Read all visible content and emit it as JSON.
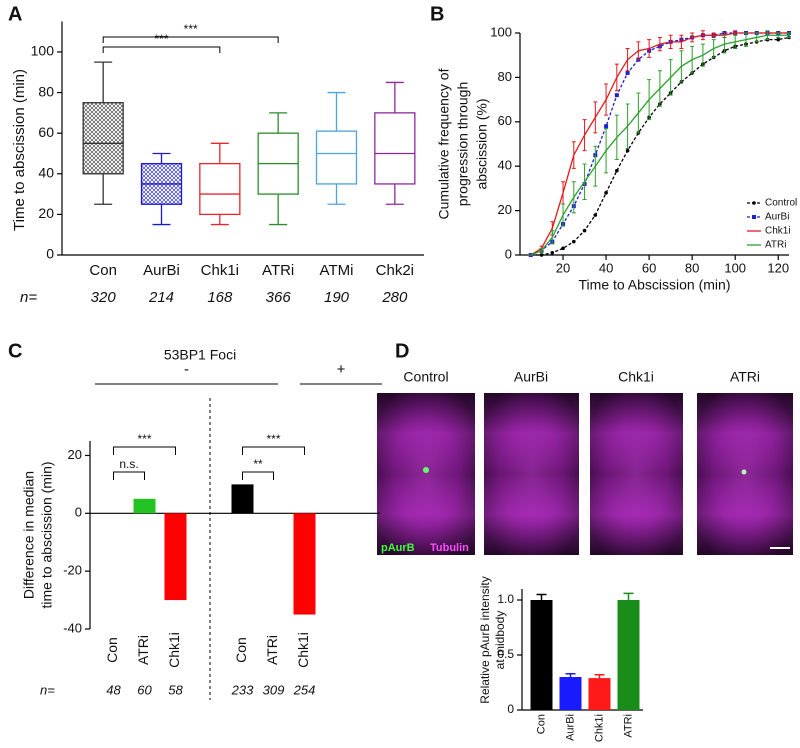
{
  "chart_data": [
    {
      "panel": "A",
      "type": "box",
      "categories": [
        "Con",
        "AurBi",
        "Chk1i",
        "ATRi",
        "ATMi",
        "Chk2i"
      ],
      "colors": [
        "#333333",
        "#1a1acc",
        "#e8262d",
        "#2c8c2c",
        "#4ba3e0",
        "#8c2a9c"
      ],
      "hatched": [
        true,
        true,
        false,
        false,
        false,
        false
      ],
      "min": [
        25,
        15,
        15,
        15,
        25,
        25
      ],
      "q1": [
        40,
        25,
        20,
        30,
        35,
        35
      ],
      "median": [
        55,
        35,
        30,
        45,
        50,
        50
      ],
      "q3": [
        75,
        45,
        45,
        60,
        61,
        70
      ],
      "max": [
        95,
        50,
        55,
        70,
        80,
        85
      ],
      "ylabel": "Time to abscission (min)",
      "ylim": [
        0,
        115
      ],
      "yticks": [
        0,
        20,
        40,
        60,
        80,
        100
      ],
      "n_label": "n=",
      "n": [
        320,
        214,
        168,
        366,
        190,
        280
      ],
      "annotations": [
        "***",
        "***"
      ]
    },
    {
      "panel": "B",
      "type": "line",
      "x": [
        5,
        10,
        15,
        20,
        25,
        30,
        35,
        40,
        45,
        50,
        55,
        60,
        65,
        70,
        75,
        80,
        85,
        90,
        95,
        100,
        105,
        110,
        115,
        120,
        125
      ],
      "xlim": [
        0,
        125
      ],
      "xticks": [
        20,
        40,
        60,
        80,
        100,
        120
      ],
      "ylim": [
        0,
        100
      ],
      "yticks": [
        0,
        20,
        40,
        60,
        80,
        100
      ],
      "xlabel": "Time to Abscission (min)",
      "ylabel": [
        "Cumulative frequency of",
        "progression through",
        "abscission (%)"
      ],
      "legend": "lower right",
      "series": [
        {
          "name": "Control",
          "color": "#000000",
          "style": "dashed",
          "marker": "circle",
          "values": [
            0,
            0,
            1,
            3,
            6,
            11,
            18,
            28,
            38,
            47,
            55,
            62,
            68,
            73,
            78,
            82,
            86,
            89,
            92,
            94,
            95,
            96,
            97,
            97,
            98
          ]
        },
        {
          "name": "AurBi",
          "color": "#1f1fd6",
          "style": "dashed",
          "marker": "square",
          "values": [
            0,
            2,
            6,
            14,
            22,
            32,
            45,
            58,
            72,
            82,
            88,
            92,
            94,
            96,
            97,
            98,
            99,
            99,
            100,
            100,
            100,
            100,
            100,
            100,
            100
          ]
        },
        {
          "name": "Chk1i",
          "color": "#e31a1c",
          "style": "solid",
          "values": [
            0,
            3,
            12,
            28,
            45,
            54,
            62,
            70,
            80,
            88,
            92,
            93,
            95,
            96,
            96,
            98,
            99,
            99,
            99,
            100,
            100,
            100,
            100,
            100,
            100
          ],
          "errors": [
            0,
            1,
            3,
            5,
            6,
            7,
            7,
            7,
            6,
            5,
            4,
            4,
            3,
            3,
            3,
            2,
            2,
            1,
            1,
            1,
            0,
            0,
            0,
            0,
            0
          ]
        },
        {
          "name": "ATRi",
          "color": "#2ca02c",
          "style": "solid",
          "values": [
            0,
            2,
            8,
            18,
            26,
            33,
            40,
            47,
            53,
            58,
            64,
            70,
            75,
            80,
            85,
            88,
            90,
            93,
            95,
            96,
            97,
            98,
            99,
            99,
            99
          ],
          "errors": [
            0,
            1,
            3,
            5,
            7,
            8,
            9,
            10,
            10,
            10,
            9,
            9,
            8,
            8,
            7,
            6,
            5,
            4,
            4,
            3,
            3,
            2,
            2,
            1,
            1
          ]
        }
      ]
    },
    {
      "panel": "C",
      "type": "bar",
      "title": "53BP1 Foci",
      "groups": [
        "-",
        "+"
      ],
      "categories": [
        "Con",
        "ATRi",
        "Chk1i",
        "Con",
        "ATRi",
        "Chk1i"
      ],
      "values": [
        0,
        5,
        -30,
        10,
        0,
        -35
      ],
      "colors": [
        "#000000",
        "#22c322",
        "#ff0000",
        "#000000",
        "#22c322",
        "#ff0000"
      ],
      "ylim": [
        -40,
        25
      ],
      "yticks": [
        -40,
        -20,
        0,
        20
      ],
      "ylabel": [
        "Difference in median",
        "time to abscission (min)"
      ],
      "n_label": "n=",
      "n": [
        48,
        60,
        58,
        233,
        309,
        254
      ],
      "annotations": [
        "n.s.",
        "***",
        "**",
        "***"
      ]
    },
    {
      "type": "bar",
      "categories": [
        "Con",
        "AurBi",
        "Chk1i",
        "ATRi"
      ],
      "values": [
        1.0,
        0.3,
        0.29,
        1.0
      ],
      "errors": [
        0.05,
        0.03,
        0.03,
        0.06
      ],
      "colors": [
        "#000000",
        "#1a1aff",
        "#ff1a1a",
        "#1a8c1a"
      ],
      "ylim": [
        0,
        1.1
      ],
      "yticks": [
        0,
        0.5,
        {
          "value": 1,
          "label": "1.0"
        }
      ],
      "ylabel": [
        "Relative pAurB intensity",
        "at midbody"
      ]
    }
  ],
  "images": {
    "panel": "D",
    "labels": [
      "Control",
      "AurBi",
      "Chk1i",
      "ATRi"
    ],
    "channels": [
      "pAurB",
      "Tubulin"
    ]
  }
}
